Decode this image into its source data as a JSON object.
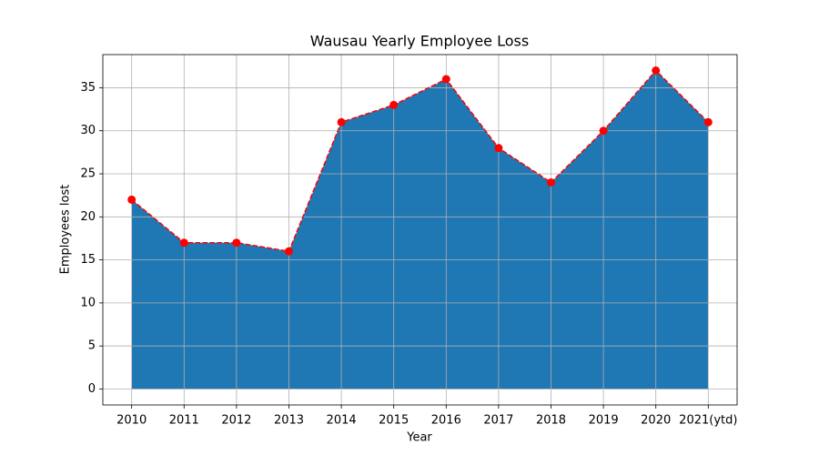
{
  "chart_data": {
    "type": "area",
    "title": "Wausau Yearly Employee Loss",
    "xlabel": "Year",
    "ylabel": "Employees lost",
    "categories": [
      "2010",
      "2011",
      "2012",
      "2013",
      "2014",
      "2015",
      "2016",
      "2017",
      "2018",
      "2019",
      "2020",
      "2021(ytd)"
    ],
    "values": [
      22,
      17,
      17,
      16,
      31,
      33,
      36,
      28,
      24,
      30,
      37,
      31
    ],
    "color": "#1f77b4",
    "line_color": "#ff0000",
    "ylim": [
      -1.85,
      38.85
    ],
    "yticks": [
      0,
      5,
      10,
      15,
      20,
      25,
      30,
      35
    ],
    "grid": true
  }
}
